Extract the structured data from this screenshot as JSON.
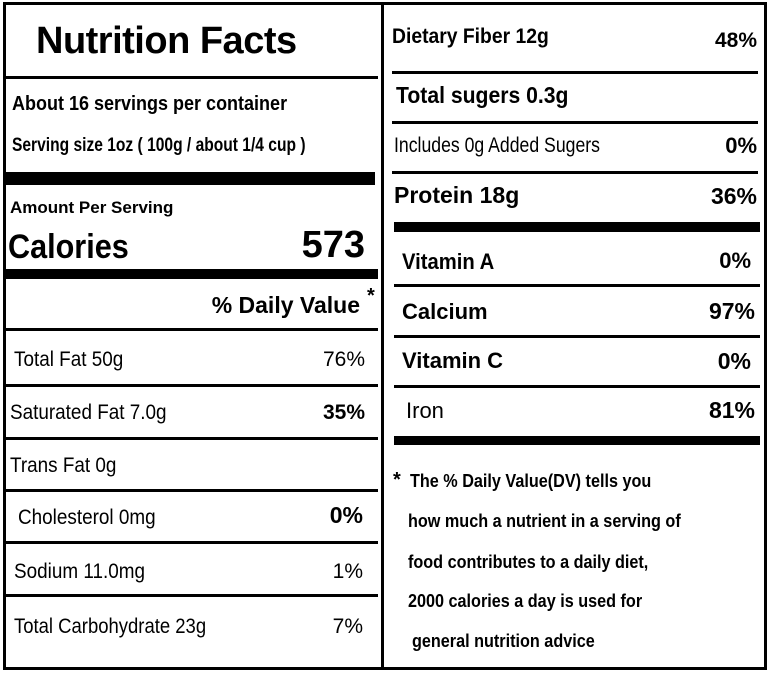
{
  "left": {
    "title": "Nutrition Facts",
    "servings": "About 16 servings per container",
    "serving_size": "Serving size 1oz ( 100g / about 1/4 cup )",
    "amount_per_serving": "Amount Per Serving",
    "calories_label": "Calories",
    "calories_value": "573",
    "daily_value_header": "% Daily Value",
    "daily_value_asterisk": "*",
    "rows": [
      {
        "label": "Total Fat  50g",
        "dv": "76%"
      },
      {
        "label": "Saturated Fat 7.0g",
        "dv": "35%"
      },
      {
        "label": "Trans Fat 0g",
        "dv": ""
      },
      {
        "label": "Cholesterol  0mg",
        "dv": "0%"
      },
      {
        "label": "Sodium    11.0mg",
        "dv": "1%"
      },
      {
        "label": "Total Carbohydrate  23g",
        "dv": "7%"
      }
    ]
  },
  "right": {
    "rows": [
      {
        "label": "Dietary Fiber  12g",
        "dv": "48%"
      },
      {
        "label": "Total sugers 0.3g",
        "dv": ""
      },
      {
        "label": "Includes 0g Added Sugers",
        "dv": "0%"
      },
      {
        "label": "Protein  18g",
        "dv": "36%"
      }
    ],
    "vitamins": [
      {
        "label": "Vitamin A",
        "dv": "0%"
      },
      {
        "label": "Calcium",
        "dv": "97%"
      },
      {
        "label": "Vitamin C",
        "dv": "0%"
      },
      {
        "label": "Iron",
        "dv": "81%"
      }
    ],
    "footnote_asterisk": "*",
    "footnote_lines": [
      "The % Daily Value(DV)  tells you",
      "how much a nutrient in a serving of",
      "food contributes to a daily diet,",
      "2000 calories a day is used for",
      "general nutrition advice"
    ]
  }
}
